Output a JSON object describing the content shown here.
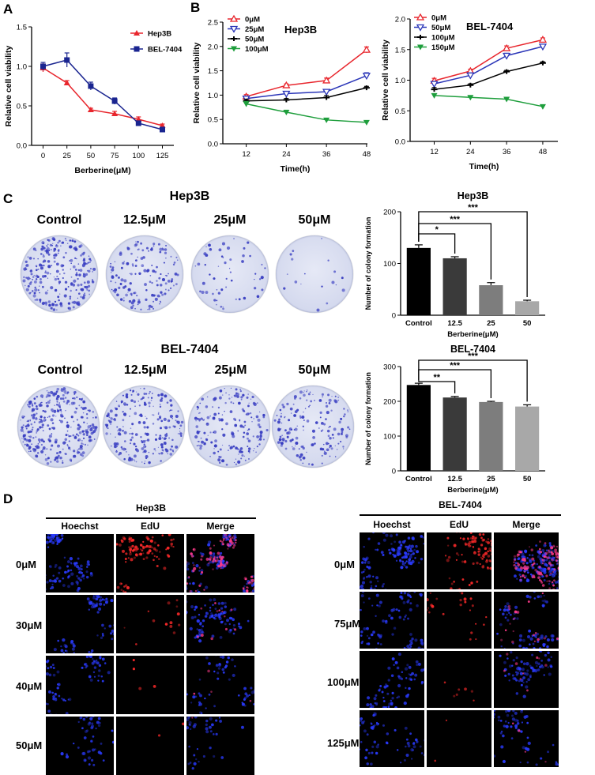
{
  "panels": {
    "a": "A",
    "b": "B",
    "c": "C",
    "d": "D"
  },
  "colors": {
    "red": "#e8262d",
    "blue": "#2b36b8",
    "black": "#000000",
    "green": "#1e9e3c",
    "navy": "#1a2590",
    "dish_dot": "#3a3fc2"
  },
  "chart_data": [
    {
      "type": "line",
      "ylabel": "Relative cell viability",
      "xlabel": "Berberine(μM)",
      "x": [
        0,
        25,
        50,
        75,
        100,
        125
      ],
      "ylim": [
        0,
        1.5
      ],
      "yticks": [
        "0.0",
        "0.5",
        "1.0",
        "1.5"
      ],
      "series": [
        {
          "name": "Hep3B",
          "values": [
            0.98,
            0.79,
            0.45,
            0.4,
            0.33,
            0.25
          ]
        },
        {
          "name": "BEL-7404",
          "values": [
            1.0,
            1.08,
            0.75,
            0.56,
            0.28,
            0.2
          ]
        }
      ]
    },
    {
      "type": "line",
      "title": "Hep3B",
      "ylabel": "Relative cell viability",
      "xlabel": "Time(h)",
      "x": [
        12,
        24,
        36,
        48
      ],
      "ylim": [
        0,
        2.5
      ],
      "yticks": [
        "0.0",
        "0.5",
        "1.0",
        "1.5",
        "2.0",
        "2.5"
      ],
      "series": [
        {
          "name": "0μM",
          "values": [
            0.97,
            1.2,
            1.3,
            1.93
          ]
        },
        {
          "name": "25μM",
          "values": [
            0.93,
            1.03,
            1.07,
            1.4
          ]
        },
        {
          "name": "50μM",
          "values": [
            0.88,
            0.9,
            0.95,
            1.15
          ]
        },
        {
          "name": "100μM",
          "values": [
            0.82,
            0.65,
            0.49,
            0.44
          ]
        }
      ]
    },
    {
      "type": "line",
      "title": "BEL-7404",
      "ylabel": "Relative cell viability",
      "xlabel": "Time(h)",
      "x": [
        12,
        24,
        36,
        48
      ],
      "ylim": [
        0,
        2.0
      ],
      "yticks": [
        "0.0",
        "0.5",
        "1.0",
        "1.5",
        "2.0"
      ],
      "series": [
        {
          "name": "0μM",
          "values": [
            0.99,
            1.15,
            1.52,
            1.66
          ]
        },
        {
          "name": "50μM",
          "values": [
            0.94,
            1.08,
            1.4,
            1.55
          ]
        },
        {
          "name": "100μM",
          "values": [
            0.85,
            0.92,
            1.14,
            1.28
          ]
        },
        {
          "name": "150μM",
          "values": [
            0.75,
            0.72,
            0.69,
            0.57
          ]
        }
      ]
    },
    {
      "type": "bar",
      "title": "Hep3B",
      "ylabel": "Number of colony formation",
      "xlabel": "Berberine(μM)",
      "categories": [
        "Control",
        "12.5",
        "25",
        "50"
      ],
      "values": [
        130,
        110,
        58,
        27
      ],
      "ylim": [
        0,
        200
      ],
      "yticks": [
        "0",
        "100",
        "200"
      ],
      "significance": [
        "*",
        "***",
        "***"
      ]
    },
    {
      "type": "bar",
      "title": "BEL-7404",
      "ylabel": "Number of colony formation",
      "xlabel": "Berberine(μM)",
      "categories": [
        "Control",
        "12.5",
        "25",
        "50"
      ],
      "values": [
        247,
        211,
        198,
        185
      ],
      "ylim": [
        0,
        300
      ],
      "yticks": [
        "0",
        "100",
        "200",
        "300"
      ],
      "significance": [
        "**",
        "***",
        "***"
      ]
    }
  ],
  "colony": {
    "hep3b": {
      "title": "Hep3B",
      "labels": [
        "Control",
        "12.5μM",
        "25μM",
        "50μM"
      ],
      "density": [
        260,
        150,
        55,
        18
      ]
    },
    "bel7404": {
      "title": "BEL-7404",
      "labels": [
        "Control",
        "12.5μM",
        "25μM",
        "50μM"
      ],
      "density": [
        330,
        240,
        190,
        170
      ]
    }
  },
  "edu": {
    "columns": [
      "Hoechst",
      "EdU",
      "Merge"
    ],
    "hep3b": {
      "title": "Hep3B",
      "rows": [
        "0μM",
        "30μM",
        "40μM",
        "50μM"
      ],
      "edu_level": [
        0.9,
        0.12,
        0.05,
        0.02
      ],
      "hoechst_level": [
        0.9,
        0.55,
        0.45,
        0.35
      ]
    },
    "bel7404": {
      "title": "BEL-7404",
      "rows": [
        "0μM",
        "75μM",
        "100μM",
        "125μM"
      ],
      "edu_level": [
        0.95,
        0.25,
        0.08,
        0.03
      ],
      "hoechst_level": [
        1.0,
        0.6,
        0.5,
        0.45
      ]
    }
  }
}
